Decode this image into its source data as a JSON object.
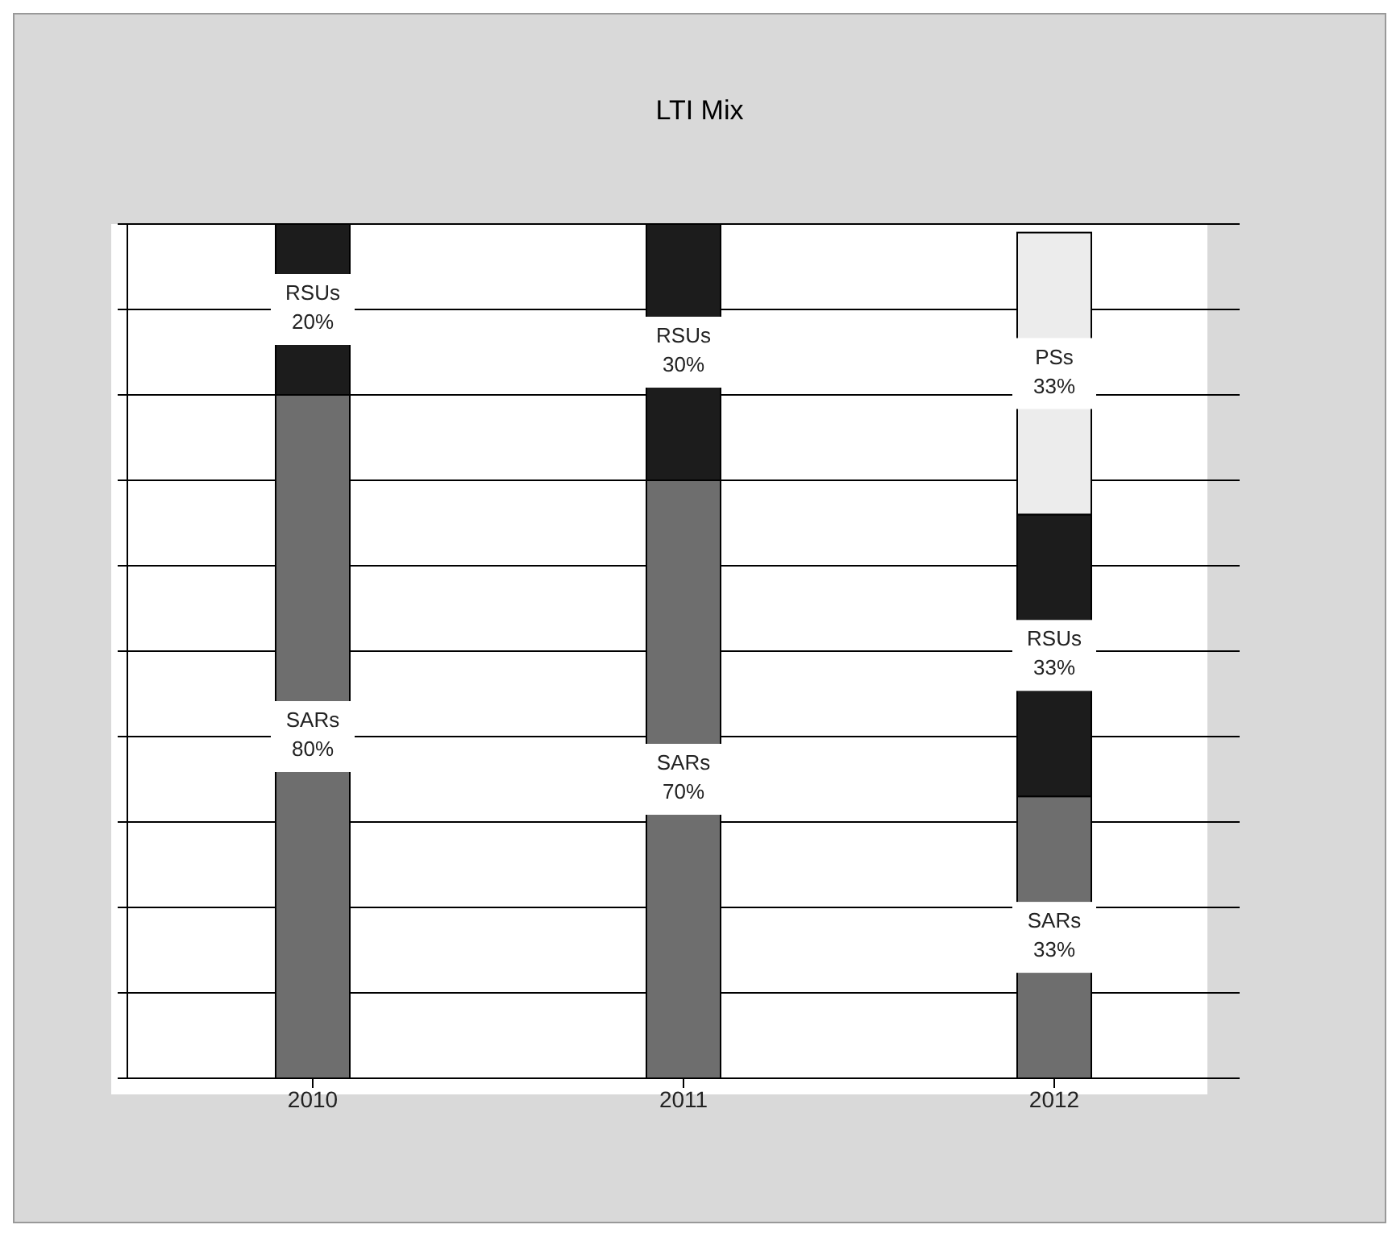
{
  "chart_data": {
    "type": "bar",
    "title": "LTI Mix",
    "categories": [
      "2010",
      "2011",
      "2012"
    ],
    "stacked": true,
    "series": [
      {
        "name": "SARs",
        "color": "#6e6e6e",
        "values": [
          80,
          70,
          33
        ],
        "value_labels": [
          "80%",
          "70%",
          "33%"
        ]
      },
      {
        "name": "RSUs",
        "color": "#1c1c1c",
        "values": [
          20,
          30,
          33
        ],
        "value_labels": [
          "20%",
          "30%",
          "33%"
        ]
      },
      {
        "name": "PSs",
        "color": "#ececec",
        "values": [
          null,
          null,
          33
        ],
        "value_labels": [
          null,
          null,
          "33%"
        ]
      }
    ],
    "ylim": [
      0,
      100
    ],
    "yticks": [
      {
        "value": 0,
        "label": null
      },
      {
        "value": 10,
        "label": null
      },
      {
        "value": 20,
        "label": null
      },
      {
        "value": 30,
        "label": null
      },
      {
        "value": 40,
        "label": null
      },
      {
        "value": 50,
        "label": null
      },
      {
        "value": 60,
        "label": null
      },
      {
        "value": 70,
        "label": null
      },
      {
        "value": 80,
        "label": null
      },
      {
        "value": 90,
        "label": null
      },
      {
        "value": 100,
        "label": null
      }
    ],
    "grid": "y",
    "tick_labels": "x",
    "legend": false
  }
}
